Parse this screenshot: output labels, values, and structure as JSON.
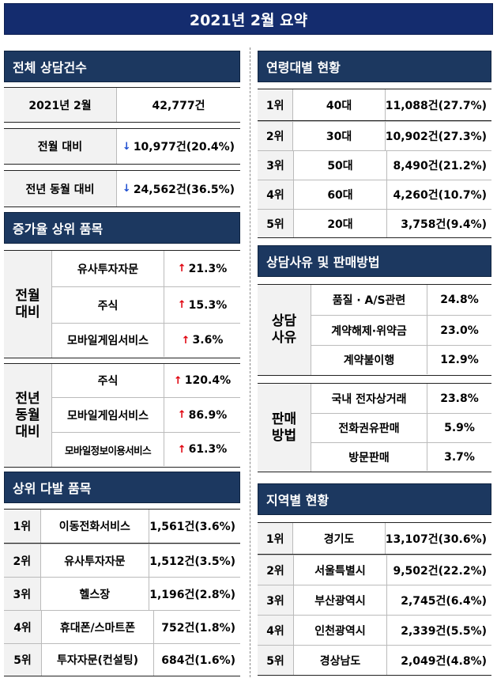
{
  "title": "2021년 2월 요약",
  "total": {
    "heading": "전체 상담건수",
    "rows": [
      {
        "label": "2021년 2월",
        "value": "42,777건",
        "arrow": ""
      },
      {
        "label": "전월 대비",
        "value": "10,977건(20.4%)",
        "arrow": "down"
      },
      {
        "label": "전년 동월 대비",
        "value": "24,562건(36.5%)",
        "arrow": "down"
      }
    ]
  },
  "growth": {
    "heading": "증가율 상위 품목",
    "groups": [
      {
        "label": "전월\n대비",
        "items": [
          {
            "name": "유사투자자문",
            "rate": "21.3%"
          },
          {
            "name": "주식",
            "rate": "15.3%"
          },
          {
            "name": "모바일게임서비스",
            "rate": "3.6%"
          }
        ]
      },
      {
        "label": "전년\n동월\n대비",
        "items": [
          {
            "name": "주식",
            "rate": "120.4%"
          },
          {
            "name": "모바일게임서비스",
            "rate": "86.9%"
          },
          {
            "name": "모바일정보이용서비스",
            "rate": "61.3%"
          }
        ]
      }
    ]
  },
  "frequent": {
    "heading": "상위 다발 품목",
    "rows": [
      {
        "rank": "1위",
        "name": "이동전화서비스",
        "value": "1,561건(3.6%)"
      },
      {
        "rank": "2위",
        "name": "유사투자자문",
        "value": "1,512건(3.5%)"
      },
      {
        "rank": "3위",
        "name": "헬스장",
        "value": "1,196건(2.8%)"
      },
      {
        "rank": "4위",
        "name": "휴대폰/스마트폰",
        "value": "752건(1.8%)"
      },
      {
        "rank": "5위",
        "name": "투자자문(컨설팅)",
        "value": "684건(1.6%)"
      }
    ]
  },
  "age": {
    "heading": "연령대별 현황",
    "rows": [
      {
        "rank": "1위",
        "name": "40대",
        "value": "11,088건(27.7%)"
      },
      {
        "rank": "2위",
        "name": "30대",
        "value": "10,902건(27.3%)"
      },
      {
        "rank": "3위",
        "name": "50대",
        "value": "8,490건(21.2%)"
      },
      {
        "rank": "4위",
        "name": "60대",
        "value": "4,260건(10.7%)"
      },
      {
        "rank": "5위",
        "name": "20대",
        "value": "3,758건(9.4%)"
      }
    ]
  },
  "reason": {
    "heading": "상담사유 및 판매방법",
    "groups": [
      {
        "label": "상담\n사유",
        "items": [
          {
            "name": "품질 · A/S관련",
            "rate": "24.8%"
          },
          {
            "name": "계약해제·위약금",
            "rate": "23.0%"
          },
          {
            "name": "계약불이행",
            "rate": "12.9%"
          }
        ]
      },
      {
        "label": "판매\n방법",
        "items": [
          {
            "name": "국내 전자상거래",
            "rate": "23.8%"
          },
          {
            "name": "전화권유판매",
            "rate": "5.9%"
          },
          {
            "name": "방문판매",
            "rate": "3.7%"
          }
        ]
      }
    ]
  },
  "region": {
    "heading": "지역별 현황",
    "rows": [
      {
        "rank": "1위",
        "name": "경기도",
        "value": "13,107건(30.6%)"
      },
      {
        "rank": "2위",
        "name": "서울특별시",
        "value": "9,502건(22.2%)"
      },
      {
        "rank": "3위",
        "name": "부산광역시",
        "value": "2,745건(6.4%)"
      },
      {
        "rank": "4위",
        "name": "인천광역시",
        "value": "2,339건(5.5%)"
      },
      {
        "rank": "5위",
        "name": "경상남도",
        "value": "2,049건(4.8%)"
      }
    ]
  },
  "icons": {
    "up": "red-up-arrow-icon",
    "down": "blue-down-arrow-icon"
  },
  "colors": {
    "title_bg": "#142c6e",
    "section_bg": "#1c3860",
    "up": "#e0000c",
    "down": "#1f4fd0"
  }
}
